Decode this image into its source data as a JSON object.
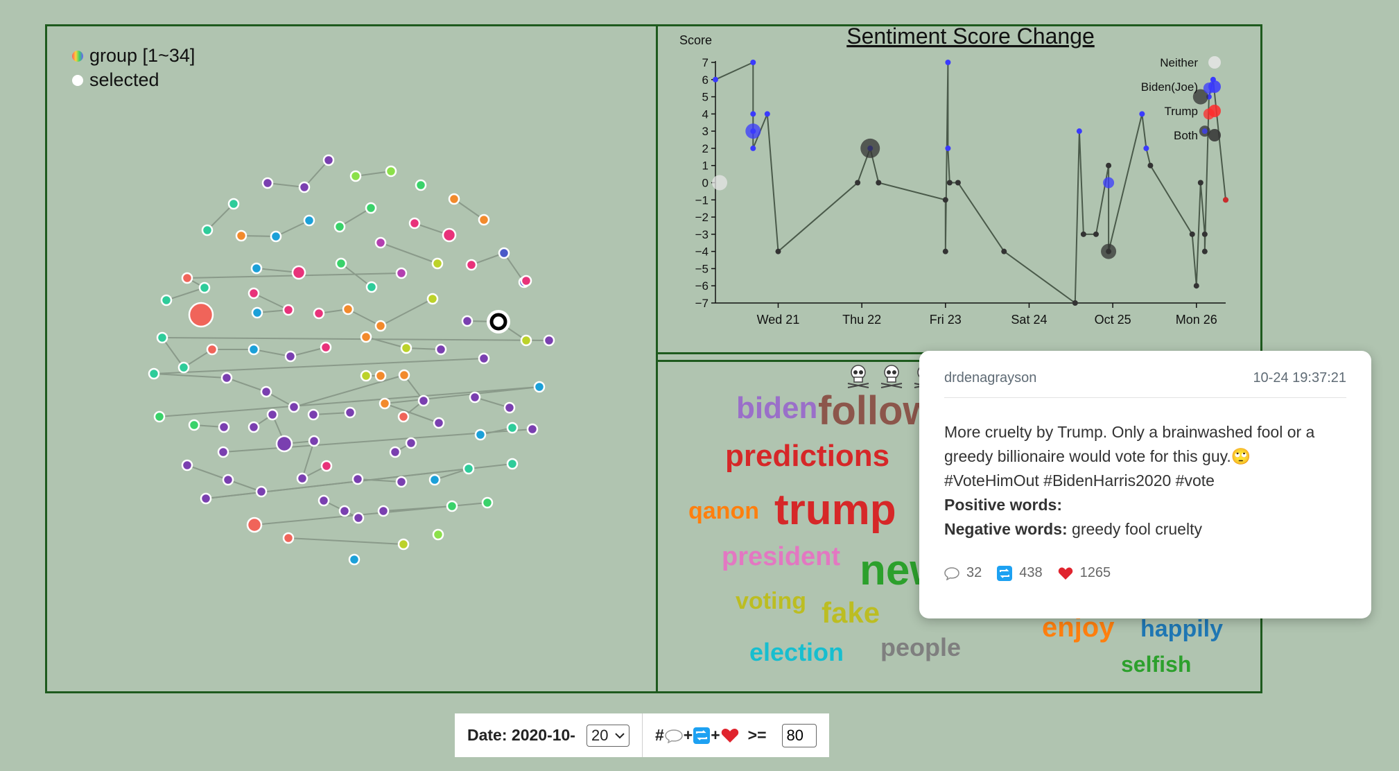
{
  "network_legend": {
    "group_label": "group [1~34]",
    "selected_label": "selected"
  },
  "chart_data": {
    "type": "line",
    "title": "Sentiment Score Change",
    "ylabel": "Score",
    "ylim": [
      -7,
      7
    ],
    "yticks": [
      "7",
      "6",
      "5",
      "4",
      "3",
      "2",
      "1",
      "0",
      "−1",
      "−2",
      "−3",
      "−4",
      "−5",
      "−6",
      "−7"
    ],
    "xticks": [
      "Wed 21",
      "Thu 22",
      "Fri 23",
      "Sat 24",
      "Oct 25",
      "Mon 26"
    ],
    "legend": [
      {
        "name": "Neither",
        "color": "#e6e6e6"
      },
      {
        "name": "Biden(Joe)",
        "color": "#3a3aff"
      },
      {
        "name": "Trump",
        "color": "#ff2a2a"
      },
      {
        "name": "Both",
        "color": "#333333"
      }
    ],
    "series": [
      {
        "name": "Both",
        "points": [
          [
            0.0,
            6
          ],
          [
            0.45,
            7
          ],
          [
            0.45,
            4
          ],
          [
            0.45,
            3
          ],
          [
            0.45,
            2
          ],
          [
            0.62,
            4
          ],
          [
            0.75,
            -4
          ],
          [
            1.7,
            0
          ],
          [
            1.85,
            2
          ],
          [
            1.95,
            0
          ],
          [
            2.75,
            -1
          ],
          [
            2.75,
            -4
          ],
          [
            2.78,
            7
          ],
          [
            2.78,
            2
          ],
          [
            2.8,
            0
          ],
          [
            2.9,
            0
          ],
          [
            3.45,
            -4
          ],
          [
            4.3,
            -7
          ],
          [
            4.35,
            3
          ],
          [
            4.4,
            -3
          ],
          [
            4.55,
            -3
          ],
          [
            4.7,
            1
          ],
          [
            4.7,
            -4
          ],
          [
            5.1,
            4
          ],
          [
            5.15,
            2
          ],
          [
            5.2,
            1
          ],
          [
            5.7,
            -3
          ],
          [
            5.75,
            -6
          ],
          [
            5.8,
            0
          ],
          [
            5.85,
            -3
          ],
          [
            5.85,
            -4
          ],
          [
            5.9,
            5
          ],
          [
            5.95,
            6
          ],
          [
            6.1,
            -1
          ]
        ]
      }
    ],
    "markers": [
      {
        "x": 0.05,
        "y": 0,
        "series": "Neither",
        "size": "large"
      },
      {
        "x": 0.45,
        "y": 3,
        "series": "Biden(Joe)",
        "size": "large"
      },
      {
        "x": 1.85,
        "y": 2,
        "series": "Both",
        "size": "xlarge"
      },
      {
        "x": 4.7,
        "y": -4,
        "series": "Both",
        "size": "large"
      },
      {
        "x": 4.7,
        "y": 0,
        "series": "Biden(Joe)",
        "size": "medium"
      },
      {
        "x": 5.8,
        "y": 5,
        "series": "Both",
        "size": "large"
      },
      {
        "x": 5.9,
        "y": 5.5,
        "series": "Biden(Joe)",
        "size": "medium"
      },
      {
        "x": 5.85,
        "y": 3,
        "series": "Both",
        "size": "medium"
      },
      {
        "x": 5.9,
        "y": 4,
        "series": "Trump",
        "size": "medium"
      },
      {
        "x": 5.85,
        "y": 3,
        "series": "Biden(Joe)",
        "size": "small"
      },
      {
        "x": 6.1,
        "y": -1,
        "series": "Trump",
        "size": "small"
      }
    ]
  },
  "wordcloud": {
    "icons": [
      "skull-icon",
      "skull-icon",
      "skull-icon"
    ],
    "words": [
      {
        "text": "biden",
        "color": "#9a6fc9",
        "size": 44
      },
      {
        "text": "follow",
        "color": "#8c564b",
        "size": 58
      },
      {
        "text": "predictions",
        "color": "#d62728",
        "size": 44
      },
      {
        "text": "qanon",
        "color": "#ff7f0e",
        "size": 34
      },
      {
        "text": "trump",
        "color": "#d62728",
        "size": 62
      },
      {
        "text": "president",
        "color": "#e377c2",
        "size": 38
      },
      {
        "text": "new",
        "color": "#2ca02c",
        "size": 62
      },
      {
        "text": "voting",
        "color": "#bcbd22",
        "size": 34
      },
      {
        "text": "fake",
        "color": "#bcbd22",
        "size": 42
      },
      {
        "text": "election",
        "color": "#17becf",
        "size": 36
      },
      {
        "text": "people",
        "color": "#7f7f7f",
        "size": 36
      },
      {
        "text": "enjoy",
        "color": "#ff7f0e",
        "size": 40
      },
      {
        "text": "happily",
        "color": "#1f77b4",
        "size": 34
      },
      {
        "text": "selfish",
        "color": "#2ca02c",
        "size": 32
      }
    ]
  },
  "tooltip": {
    "user": "drdenagrayson",
    "timestamp": "10-24 19:37:21",
    "text": "More cruelty by Trump. Only a brainwashed fool or a greedy billionaire would vote for this guy.🙄 #VoteHimOut #BidenHarris2020 #vote",
    "positive_label": "Positive words:",
    "positive_words": "",
    "negative_label": "Negative words:",
    "negative_words": "greedy fool cruelty",
    "replies": "32",
    "retweets": "438",
    "likes": "1265"
  },
  "controls": {
    "date_label": "Date: 2020-10-",
    "date_value": "20",
    "threshold_prefix": "#",
    "threshold_op": ">=",
    "threshold_value": "80"
  }
}
